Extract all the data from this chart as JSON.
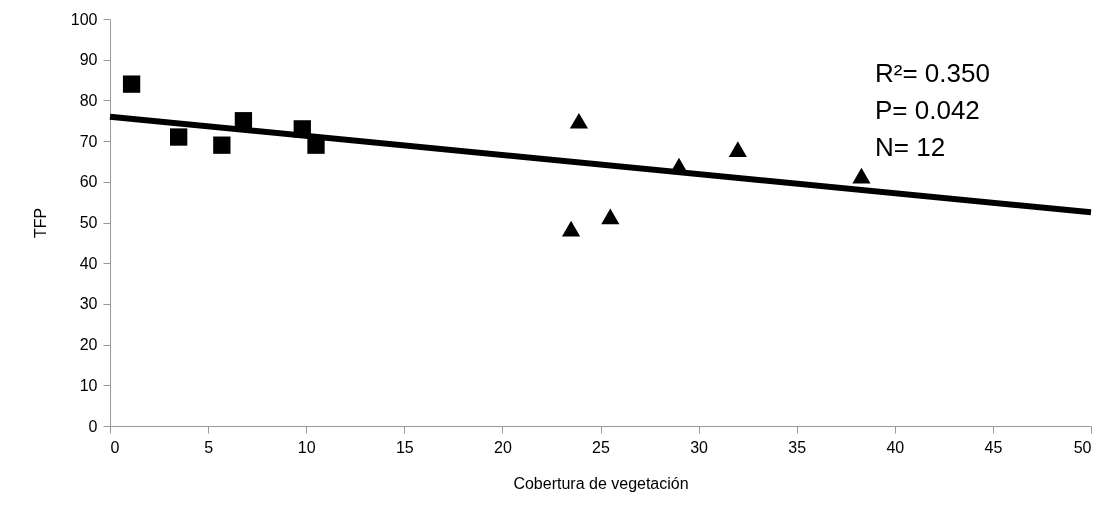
{
  "chart_data": {
    "type": "scatter",
    "xlabel": "Cobertura de vegetación",
    "ylabel": "TFP",
    "xlim": [
      0,
      50
    ],
    "xticks": [
      0,
      5,
      10,
      15,
      20,
      25,
      30,
      35,
      40,
      45,
      50
    ],
    "ylim": [
      0,
      100
    ],
    "yticks": [
      0,
      10,
      20,
      30,
      40,
      50,
      60,
      70,
      80,
      90,
      100
    ],
    "grid": false,
    "annotations": [
      "R²= 0.350",
      "P= 0.042",
      "N= 12"
    ],
    "series": [
      {
        "marker": "square",
        "color": "#000000",
        "x": [
          1.1,
          3.5,
          5.7,
          6.8,
          9.8,
          10.5
        ],
        "values": [
          84,
          71,
          69,
          75,
          73,
          69
        ]
      },
      {
        "marker": "triangle",
        "color": "#000000",
        "x": [
          23.5,
          23.9,
          25.5,
          29,
          32,
          38.3
        ],
        "values": [
          48.5,
          75,
          51.5,
          64,
          68,
          61.5
        ]
      },
      {
        "type": "line",
        "color": "#000000",
        "x": [
          0,
          50
        ],
        "values": [
          76,
          52.5
        ]
      }
    ]
  }
}
